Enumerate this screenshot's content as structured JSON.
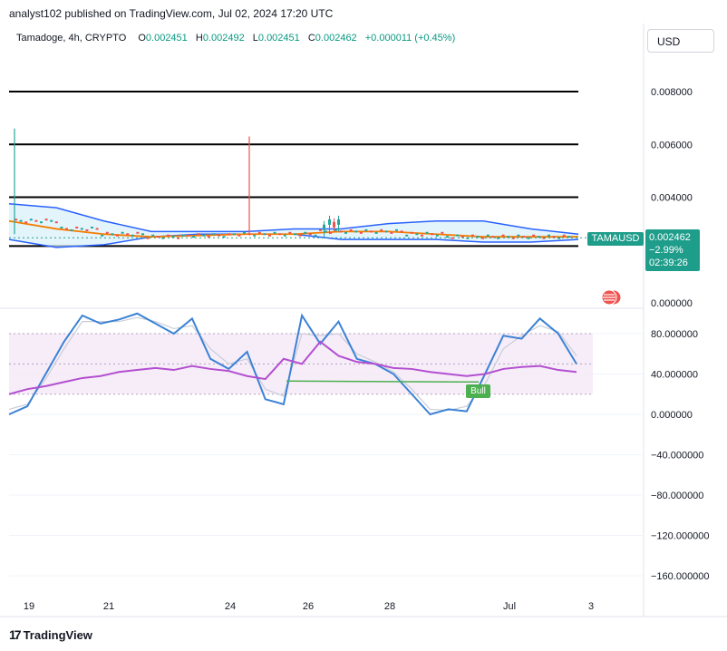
{
  "header": {
    "publisher_line": "analyst102 published on TradingView.com, Jul 02, 2024 17:20 UTC",
    "symbol": "Tamadoge, 4h, CRYPTO",
    "ohlc": {
      "o_label": "O",
      "o": "0.002451",
      "h_label": "H",
      "h": "0.002492",
      "l_label": "L",
      "l": "0.002451",
      "c_label": "C",
      "c": "0.002462",
      "change": "+0.000011 (+0.45%)"
    },
    "currency": "USD"
  },
  "price_tag": {
    "ticker": "TAMAUSD",
    "price": "0.002462",
    "change": "−2.99%",
    "countdown": "02:39:26"
  },
  "indicator": {
    "bull_label": "Bull"
  },
  "branding": {
    "logo_text": "TradingView"
  },
  "colors": {
    "accent": "#1f9d8b",
    "bb_fill": "#d9f0fa",
    "bb_line": "#2962ff",
    "ma_line": "#f57c00",
    "stoch_k": "#3b82d6",
    "rsi": "#b34fd1",
    "bull": "#4caf50",
    "up": "#26a69a",
    "down": "#ef5350"
  },
  "chart_data": [
    {
      "type": "line",
      "name": "price-pane",
      "y_axis_ticks": [
        "0.008000",
        "0.006000",
        "0.004000",
        "0.000000"
      ],
      "ylim": [
        0,
        0.0092
      ],
      "horizontal_levels": [
        0.008,
        0.006,
        0.004,
        0.00215
      ],
      "x_tick_labels": [
        "19",
        "21",
        "24",
        "26",
        "28",
        "Jul",
        "3"
      ],
      "last_price": 0.002462,
      "spikes": [
        {
          "x_label": "18.9",
          "high": 0.0066,
          "color": "up"
        },
        {
          "x_label": "24.4",
          "high": 0.0063,
          "color": "down"
        }
      ],
      "series": [
        {
          "name": "bb_upper",
          "values": [
            0.00375,
            0.0036,
            0.0031,
            0.0027,
            0.0027,
            0.0027,
            0.0028,
            0.0028,
            0.003,
            0.0031,
            0.0031,
            0.0028,
            0.0026
          ]
        },
        {
          "name": "bb_lower",
          "values": [
            0.0024,
            0.0021,
            0.0022,
            0.0025,
            0.0026,
            0.0026,
            0.0026,
            0.0024,
            0.0024,
            0.0024,
            0.0023,
            0.0023,
            0.0024
          ]
        },
        {
          "name": "ma",
          "values": [
            0.0031,
            0.0028,
            0.0026,
            0.0025,
            0.00255,
            0.0026,
            0.0026,
            0.0027,
            0.0027,
            0.0026,
            0.0025,
            0.0025,
            0.0025
          ]
        }
      ]
    },
    {
      "type": "line",
      "name": "stochastic-rsi-pane",
      "y_axis_ticks": [
        "80.000000",
        "40.000000",
        "0.000000",
        "−40.000000",
        "−80.000000",
        "−120.000000",
        "−160.000000"
      ],
      "ylim": [
        -175,
        105
      ],
      "bands": [
        80,
        50,
        20
      ],
      "series": [
        {
          "name": "stoch_k",
          "values": [
            0,
            8,
            40,
            72,
            98,
            90,
            94,
            100,
            90,
            80,
            95,
            55,
            45,
            62,
            15,
            10,
            98,
            70,
            92,
            55,
            50,
            40,
            20,
            0,
            5,
            3,
            40,
            78,
            75,
            95,
            80,
            50
          ]
        },
        {
          "name": "stoch_d",
          "values": [
            5,
            10,
            35,
            65,
            92,
            92,
            92,
            96,
            92,
            85,
            88,
            65,
            50,
            55,
            25,
            18,
            80,
            78,
            80,
            60,
            52,
            42,
            25,
            5,
            4,
            8,
            30,
            65,
            78,
            88,
            82,
            58
          ]
        },
        {
          "name": "rsi",
          "values": [
            20,
            25,
            28,
            32,
            36,
            38,
            42,
            44,
            46,
            44,
            48,
            45,
            43,
            38,
            35,
            55,
            50,
            72,
            58,
            52,
            50,
            46,
            45,
            42,
            40,
            38,
            40,
            45,
            47,
            48,
            44,
            42
          ]
        }
      ],
      "annotations": [
        {
          "text": "Bull",
          "at_value": 33
        }
      ]
    }
  ]
}
